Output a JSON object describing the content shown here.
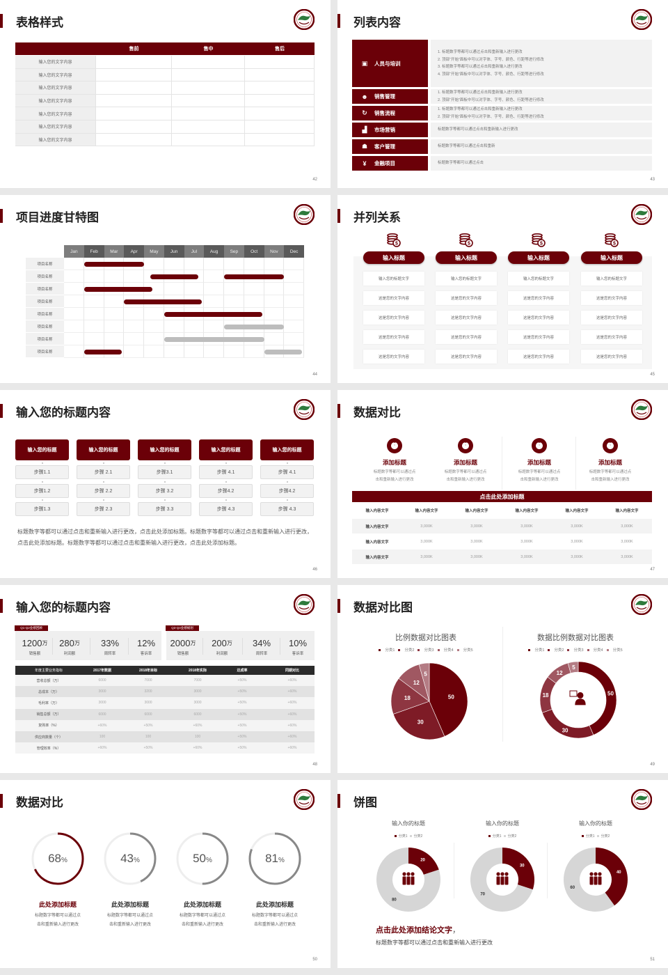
{
  "colors": {
    "brand": "#6b0008",
    "gray_bar": "#bdbdbd",
    "ring_gray": "#888888",
    "track": "#eeeeee"
  },
  "slides": [
    {
      "title": "表格样式",
      "page": "42",
      "table": {
        "headers": [
          "",
          "售前",
          "售中",
          "售后"
        ],
        "rows": [
          "输入您的文字内容",
          "输入您的文字内容",
          "输入您的文字内容",
          "输入您的文字内容",
          "输入您的文字内容",
          "输入您的文字内容",
          "输入您的文字内容"
        ]
      }
    },
    {
      "title": "列表内容",
      "page": "43",
      "items": [
        {
          "label": "人员与培训",
          "icon": "training-icon",
          "lines": [
            "1.    标题数字等都可以通过点击和重新输入进行更改",
            "2.    顶部“开始”面板中可以对字体、字号、颜色、行距等进行修改",
            "3.    标题数字等都可以通过点击和重新输入进行更改",
            "4.    顶部“开始”面板中可以对字体、字号、颜色、行距等进行修改"
          ]
        },
        {
          "label": "销售管理",
          "icon": "sales-manager-icon",
          "lines": [
            "1.    标题数字等都可以通过点击和重新输入进行更改",
            "2.    顶部“开始”面板中可以对字体、字号、颜色、行距等进行修改"
          ]
        },
        {
          "label": "销售流程",
          "icon": "cycle-icon",
          "lines": [
            "1.    标题数字等都可以通过点击和重新输入进行更改",
            "2.    顶部“开始”面板中可以对字体、字号、颜色、行距等进行修改"
          ]
        },
        {
          "label": "市场营销",
          "icon": "bar-chart-icon",
          "lines": [
            "标题数字等都可以通过点击和重新输入进行更改"
          ]
        },
        {
          "label": "客户管理",
          "icon": "users-icon",
          "lines": [
            "标题数字等都可以通过点击和重新"
          ]
        },
        {
          "label": "金融项目",
          "icon": "finance-icon",
          "lines": [
            "标题数字等都可以通过点击"
          ]
        }
      ]
    },
    {
      "title": "项目进度甘特图",
      "page": "44",
      "months": [
        "Jan",
        "Feb",
        "Mar",
        "Apr",
        "May",
        "Jun",
        "Jul",
        "Aug",
        "Sep",
        "Oct",
        "Nov",
        "Dec"
      ],
      "tasks": [
        {
          "label": "项目名称",
          "bars": [
            {
              "start": 1,
              "end": 4,
              "status": "active"
            }
          ]
        },
        {
          "label": "项目名称",
          "bars": [
            {
              "start": 4.3,
              "end": 6.7,
              "status": "active"
            },
            {
              "start": 8,
              "end": 11,
              "status": "active"
            }
          ]
        },
        {
          "label": "项目名称",
          "bars": [
            {
              "start": 1,
              "end": 4.4,
              "status": "active"
            }
          ]
        },
        {
          "label": "项目名称",
          "bars": [
            {
              "start": 3,
              "end": 6.9,
              "status": "active"
            }
          ]
        },
        {
          "label": "项目名称",
          "bars": [
            {
              "start": 5,
              "end": 9.9,
              "status": "active"
            }
          ]
        },
        {
          "label": "项目名称",
          "bars": [
            {
              "start": 8,
              "end": 11,
              "status": "planned"
            }
          ]
        },
        {
          "label": "项目名称",
          "bars": [
            {
              "start": 5,
              "end": 10,
              "status": "planned"
            }
          ]
        },
        {
          "label": "项目名称",
          "bars": [
            {
              "start": 1,
              "end": 2.9,
              "status": "active"
            },
            {
              "start": 10,
              "end": 11.9,
              "status": "planned"
            }
          ]
        }
      ]
    },
    {
      "title": "并列关系",
      "page": "45",
      "columns": [
        {
          "header": "输入标题",
          "icon": "coins-icon",
          "rows": [
            "输入您的标题文字",
            "这是您的文字内容",
            "这是您的文字内容",
            "这是您的文字内容",
            "这是您的文字内容"
          ]
        },
        {
          "header": "输入标题",
          "icon": "coins-icon",
          "rows": [
            "输入您的标题文字",
            "这是您的文字内容",
            "这是您的文字内容",
            "这是您的文字内容",
            "这是您的文字内容"
          ]
        },
        {
          "header": "输入标题",
          "icon": "coins-icon",
          "rows": [
            "输入您的标题文字",
            "这是您的文字内容",
            "这是您的文字内容",
            "这是您的文字内容",
            "这是您的文字内容"
          ]
        },
        {
          "header": "输入标题",
          "icon": "coins-icon",
          "rows": [
            "输入您的标题文字",
            "这是您的文字内容",
            "这是您的文字内容",
            "这是您的文字内容",
            "这是您的文字内容"
          ]
        }
      ]
    },
    {
      "title": "输入您的标题内容",
      "page": "46",
      "columns": [
        {
          "header": "输入您的标题",
          "steps": [
            "步骤1.1",
            "步骤1.2",
            "步骤1.3"
          ]
        },
        {
          "header": "输入您的标题",
          "steps": [
            "步骤 2.1",
            "步骤 2.2",
            "步骤 2.3"
          ]
        },
        {
          "header": "输入您的标题",
          "steps": [
            "步骤3.1",
            "步骤 3.2",
            "步骤 3.3"
          ]
        },
        {
          "header": "输入您的标题",
          "steps": [
            "步骤 4.1",
            "步骤4.2",
            "步骤 4.3"
          ]
        },
        {
          "header": "输入您的标题",
          "steps": [
            "步骤 4.1",
            "步骤4.2",
            "步骤 4.3"
          ]
        }
      ],
      "paragraph": "标题数字等都可以通过点击和重新输入进行更改，点击此处添加标题。标题数字等都可以通过点击和重新输入进行更改，点击此处添加标题。标题数字等都可以通过点击和重新输入进行更改，点击此处添加标题。"
    },
    {
      "title": "数据对比",
      "page": "47",
      "features": [
        {
          "title": "添加标题",
          "icon": "pie-chart-icon",
          "desc": [
            "标题数字等都可以通过点",
            "击和重新输入进行更改"
          ]
        },
        {
          "title": "添加标题",
          "icon": "pie-chart-icon",
          "desc": [
            "标题数字等都可以通过点",
            "击和重新输入进行更改"
          ]
        },
        {
          "title": "添加标题",
          "icon": "pie-chart-icon",
          "desc": [
            "标题数字等都可以通过点",
            "击和重新输入进行更改"
          ]
        },
        {
          "title": "添加标题",
          "icon": "pie-chart-icon",
          "desc": [
            "标题数字等都可以通过点",
            "击和重新输入进行更改"
          ]
        }
      ],
      "banner": "点击此处添加标题",
      "table": {
        "headers": [
          "输入内容文字",
          "输入内容文字",
          "输入内容文字",
          "输入内容文字",
          "输入内容文字",
          "输入内容文字"
        ],
        "rows": [
          [
            "输入内容文字",
            "3,000K",
            "3,000K",
            "3,000K",
            "3,000K",
            "3,000K"
          ],
          [
            "输入内容文字",
            "3,000K",
            "3,000K",
            "3,000K",
            "3,000K",
            "3,000K"
          ],
          [
            "输入内容文字",
            "3,000K",
            "3,000K",
            "3,000K",
            "3,000K",
            "3,000K"
          ]
        ]
      }
    },
    {
      "title": "输入您的标题内容",
      "page": "48",
      "kpi_groups": [
        {
          "tag": "Q1-Q2业绩回顾",
          "items": [
            {
              "value": "1200",
              "unit": "万",
              "label": "销售额"
            },
            {
              "value": "280",
              "unit": "万",
              "label": "利润额"
            },
            {
              "value": "33%",
              "unit": "",
              "label": "周转率"
            },
            {
              "value": "12%",
              "unit": "",
              "label": "客诉率"
            }
          ]
        },
        {
          "tag": "Q3-Q4业绩规划",
          "items": [
            {
              "value": "2000",
              "unit": "万",
              "label": "销售额"
            },
            {
              "value": "200",
              "unit": "万",
              "label": "利润额"
            },
            {
              "value": "34%",
              "unit": "",
              "label": "周转率"
            },
            {
              "value": "10%",
              "unit": "",
              "label": "客诉率"
            }
          ]
        }
      ],
      "table": {
        "headers": [
          "年度主要业务指标",
          "2017年数据",
          "2018年目标",
          "2018年实际",
          "达成率",
          "同期对比"
        ],
        "rows": [
          [
            "营收总额（万）",
            "6000",
            "7000",
            "7000",
            "+50%",
            "+60%"
          ],
          [
            "总成本（万）",
            "3000",
            "3200",
            "3000",
            "+50%",
            "+60%"
          ],
          [
            "毛利率（万）",
            "3000",
            "3000",
            "3000",
            "+50%",
            "+60%"
          ],
          [
            "销售总额（万）",
            "6000",
            "6000",
            "6000",
            "+50%",
            "+60%"
          ],
          [
            "复购率（%）",
            "+60%",
            "+50%",
            "+60%",
            "+50%",
            "+60%"
          ],
          [
            "供应商数量（个）",
            "100",
            "100",
            "100",
            "+50%",
            "+60%"
          ],
          [
            "管理效率（%）",
            "+60%",
            "+50%",
            "+60%",
            "+50%",
            "+60%"
          ]
        ]
      }
    },
    {
      "title": "数据对比图",
      "page": "49",
      "charts": [
        {
          "type": "pie",
          "title": "比例数据对比图表",
          "categories": [
            "分类1",
            "分类2",
            "分类3",
            "分类4",
            "分类5"
          ],
          "values": [
            50,
            30,
            18,
            12,
            5
          ],
          "colors": [
            "#6b0008",
            "#7e1b26",
            "#8e3641",
            "#a05862",
            "#b47c84"
          ]
        },
        {
          "type": "donut",
          "title": "数据比例数据对比图表",
          "categories": [
            "分类1",
            "分类2",
            "分类3",
            "分类4",
            "分类5"
          ],
          "values": [
            50,
            30,
            18,
            12,
            5
          ],
          "colors": [
            "#6b0008",
            "#7e1b26",
            "#8e3641",
            "#a05862",
            "#b47c84"
          ],
          "center_icon": "customer-service-icon"
        }
      ]
    },
    {
      "title": "数据对比",
      "page": "50",
      "rings": [
        {
          "value": 68,
          "label": "68",
          "unit": "%",
          "title": "此处添加标题",
          "highlight": true,
          "desc": [
            "标题数字等都可以通过点",
            "击和重新输入进行更改"
          ]
        },
        {
          "value": 43,
          "label": "43",
          "unit": "%",
          "title": "此处添加标题",
          "highlight": false,
          "desc": [
            "标题数字等都可以通过点",
            "击和重新输入进行更改"
          ]
        },
        {
          "value": 50,
          "label": "50",
          "unit": "%",
          "title": "此处添加标题",
          "highlight": false,
          "desc": [
            "标题数字等都可以通过点",
            "击和重新输入进行更改"
          ]
        },
        {
          "value": 81,
          "label": "81",
          "unit": "%",
          "title": "此处添加标题",
          "highlight": false,
          "desc": [
            "标题数字等都可以通过点",
            "击和重新输入进行更改"
          ]
        }
      ]
    },
    {
      "title": "饼图",
      "page": "51",
      "donuts": [
        {
          "title": "输入你的标题",
          "categories": [
            "分类1",
            "分类2"
          ],
          "values": [
            20,
            80
          ],
          "center_icon": "team-icon"
        },
        {
          "title": "输入你的标题",
          "categories": [
            "分类1",
            "分类2"
          ],
          "values": [
            30,
            70
          ],
          "center_icon": "team-icon"
        },
        {
          "title": "输入你的标题",
          "categories": [
            "分类1",
            "分类2"
          ],
          "values": [
            40,
            60
          ],
          "center_icon": "team-icon"
        }
      ],
      "conclusion": {
        "title": "点击此处添加结论文字",
        "comma": "，",
        "text": "标题数字等都可以通过点击和重新输入进行更改"
      }
    }
  ]
}
